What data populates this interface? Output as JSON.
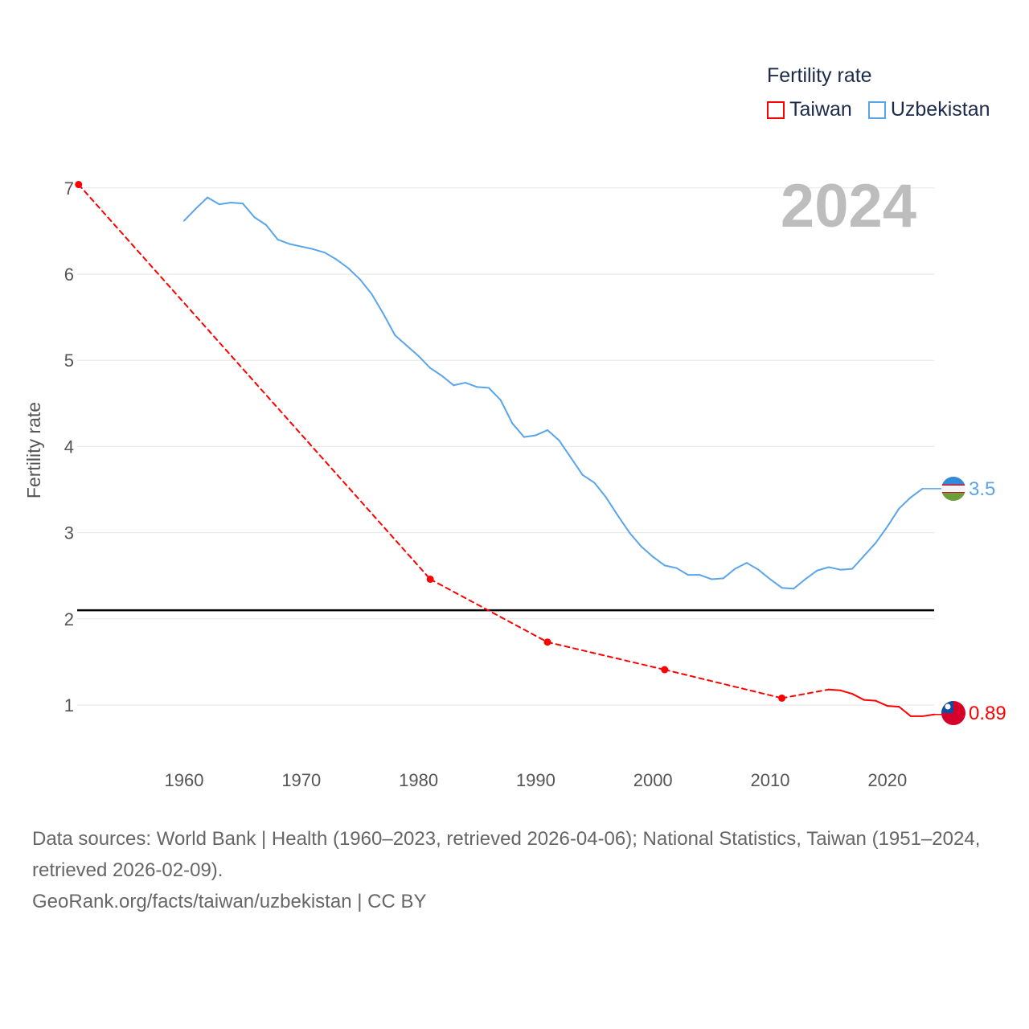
{
  "legend": {
    "title": "Fertility rate",
    "items": [
      {
        "label": "Taiwan",
        "color": "#ff0000"
      },
      {
        "label": "Uzbekistan",
        "color": "#5aa5ea"
      }
    ]
  },
  "year_label": "2024",
  "footer": {
    "sources": "Data sources: World Bank | Health (1960–2023, retrieved 2026-04-06); National Statistics, Taiwan (1951–2024, retrieved 2026-02-09).",
    "link": "GeoRank.org/facts/taiwan/uzbekistan | CC BY"
  },
  "chart_data": {
    "type": "line",
    "ylabel": "Fertility rate",
    "xlabel": "",
    "xlim": [
      1951,
      2024
    ],
    "ylim": [
      0.5,
      7
    ],
    "x_ticks": [
      1960,
      1970,
      1980,
      1990,
      2000,
      2010,
      2020
    ],
    "y_ticks": [
      1,
      2,
      3,
      4,
      5,
      6,
      7
    ],
    "reference_line": 2.1,
    "series": [
      {
        "name": "Taiwan",
        "color": "#ff0000",
        "end_label": "0.89",
        "x": [
          1951,
          1981,
          1991,
          2001,
          2011,
          2015,
          2016,
          2017,
          2018,
          2019,
          2020,
          2021,
          2022,
          2023,
          2024
        ],
        "y": [
          7.04,
          2.46,
          1.73,
          1.41,
          1.08,
          1.18,
          1.17,
          1.13,
          1.06,
          1.05,
          0.99,
          0.98,
          0.87,
          0.87,
          0.89
        ]
      },
      {
        "name": "Uzbekistan",
        "color": "#5aa5ea",
        "end_label": "3.5",
        "x": [
          1960,
          1961,
          1962,
          1963,
          1964,
          1965,
          1966,
          1967,
          1968,
          1969,
          1970,
          1971,
          1972,
          1973,
          1974,
          1975,
          1976,
          1977,
          1978,
          1979,
          1980,
          1981,
          1982,
          1983,
          1984,
          1985,
          1986,
          1987,
          1988,
          1989,
          1990,
          1991,
          1992,
          1993,
          1994,
          1995,
          1996,
          1997,
          1998,
          1999,
          2000,
          2001,
          2002,
          2003,
          2004,
          2005,
          2006,
          2007,
          2008,
          2009,
          2010,
          2011,
          2012,
          2013,
          2014,
          2015,
          2016,
          2017,
          2018,
          2019,
          2020,
          2021,
          2022,
          2023
        ],
        "y": [
          6.62,
          6.76,
          6.89,
          6.81,
          6.83,
          6.82,
          6.66,
          6.57,
          6.4,
          6.35,
          6.32,
          6.29,
          6.25,
          6.17,
          6.07,
          5.94,
          5.77,
          5.54,
          5.29,
          5.17,
          5.05,
          4.91,
          4.82,
          4.71,
          4.74,
          4.69,
          4.68,
          4.54,
          4.27,
          4.11,
          4.13,
          4.19,
          4.07,
          3.87,
          3.67,
          3.58,
          3.41,
          3.2,
          3.0,
          2.84,
          2.72,
          2.62,
          2.59,
          2.51,
          2.51,
          2.46,
          2.47,
          2.58,
          2.65,
          2.57,
          2.46,
          2.36,
          2.35,
          2.46,
          2.56,
          2.6,
          2.57,
          2.58,
          2.73,
          2.88,
          3.07,
          3.28,
          3.41,
          3.51
        ]
      }
    ]
  }
}
